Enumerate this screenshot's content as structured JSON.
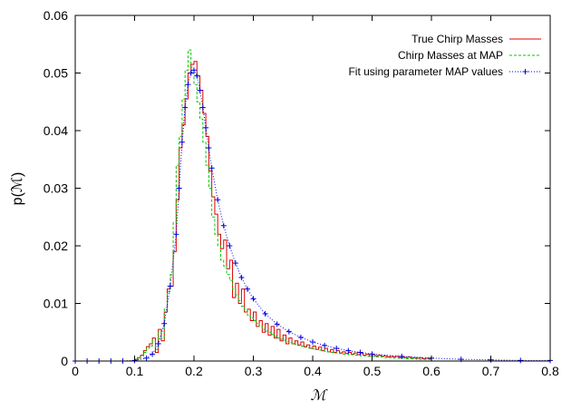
{
  "chart_data": {
    "type": "line",
    "title": "",
    "xlabel": "ℳ",
    "ylabel": "p(ℳ)",
    "xlim": [
      0,
      0.8
    ],
    "ylim": [
      0,
      0.06
    ],
    "x_ticks": [
      "0",
      "0.1",
      "0.2",
      "0.3",
      "0.4",
      "0.5",
      "0.6",
      "0.7",
      "0.8"
    ],
    "y_ticks": [
      "0",
      "0.01",
      "0.02",
      "0.03",
      "0.04",
      "0.05",
      "0.06"
    ],
    "grid": false,
    "legend_position": "top-right",
    "series": [
      {
        "name": "True Chirp Masses",
        "style": "histogram-step",
        "color": "#e00000",
        "bin_width": 0.005,
        "x_start": 0.1,
        "values": [
          0.0003,
          0.0006,
          0.001,
          0.0018,
          0.0025,
          0.003,
          0.004,
          0.0015,
          0.0055,
          0.0035,
          0.0085,
          0.0125,
          0.013,
          0.019,
          0.028,
          0.037,
          0.041,
          0.0455,
          0.05,
          0.0515,
          0.052,
          0.0495,
          0.047,
          0.043,
          0.039,
          0.033,
          0.0285,
          0.0255,
          0.022,
          0.0195,
          0.021,
          0.016,
          0.0175,
          0.011,
          0.0135,
          0.01,
          0.0125,
          0.0085,
          0.009,
          0.007,
          0.0085,
          0.006,
          0.007,
          0.005,
          0.0065,
          0.0045,
          0.006,
          0.004,
          0.0055,
          0.0035,
          0.0045,
          0.003,
          0.004,
          0.003,
          0.0035,
          0.0028,
          0.0033,
          0.0025,
          0.0028,
          0.0022,
          0.0026,
          0.002,
          0.0024,
          0.0018,
          0.0022,
          0.0016,
          0.002,
          0.0015,
          0.0018,
          0.0014,
          0.0016,
          0.0013,
          0.0015,
          0.0012,
          0.0014,
          0.0011,
          0.0013,
          0.001,
          0.0012,
          0.0009,
          0.0011,
          0.0009,
          0.001,
          0.0008,
          0.0009,
          0.0007,
          0.0008,
          0.0007,
          0.0008,
          0.0006,
          0.0007,
          0.0006,
          0.0007,
          0.0005,
          0.0006,
          0.0005,
          0.0006,
          0.0004,
          0.0005,
          0.0004
        ]
      },
      {
        "name": "Chirp Masses at MAP",
        "style": "histogram-step-dashed",
        "color": "#00c800",
        "bin_width": 0.005,
        "x_start": 0.1,
        "values": [
          0.0002,
          0.0005,
          0.0008,
          0.0015,
          0.0022,
          0.0026,
          0.0035,
          0.002,
          0.005,
          0.004,
          0.009,
          0.012,
          0.015,
          0.024,
          0.034,
          0.039,
          0.0455,
          0.0505,
          0.054,
          0.051,
          0.048,
          0.045,
          0.042,
          0.038,
          0.034,
          0.03,
          0.025,
          0.022,
          0.02,
          0.0175,
          0.0165,
          0.015,
          0.014,
          0.0125,
          0.0115,
          0.0105,
          0.0095,
          0.009,
          0.008,
          0.0075,
          0.007,
          0.0065,
          0.006,
          0.0055,
          0.0052,
          0.005,
          0.0046,
          0.0043,
          0.004,
          0.0038,
          0.0036,
          0.0034,
          0.0032,
          0.003,
          0.0029,
          0.0027,
          0.0026,
          0.0024,
          0.0023,
          0.0022,
          0.0021,
          0.002,
          0.0019,
          0.0018,
          0.0017,
          0.0016,
          0.0015,
          0.0014,
          0.0014,
          0.0013,
          0.0012,
          0.0012,
          0.0011,
          0.0011,
          0.001,
          0.001,
          0.0009,
          0.0009,
          0.0008,
          0.0008,
          0.0008,
          0.0007,
          0.0007,
          0.0007,
          0.0006,
          0.0006,
          0.0006,
          0.0005,
          0.0005,
          0.0005,
          0.0005,
          0.0004,
          0.0004,
          0.0004,
          0.0004,
          0.0003,
          0.0003,
          0.0003,
          0.0003,
          0.0003
        ]
      },
      {
        "name": "Fit using parameter MAP values",
        "style": "dotted-line-with-plus-markers",
        "color": "#0000e0",
        "x": [
          0.0,
          0.02,
          0.04,
          0.06,
          0.08,
          0.1,
          0.12,
          0.13,
          0.14,
          0.15,
          0.16,
          0.17,
          0.175,
          0.18,
          0.185,
          0.19,
          0.195,
          0.2,
          0.205,
          0.21,
          0.215,
          0.22,
          0.225,
          0.23,
          0.24,
          0.25,
          0.26,
          0.27,
          0.28,
          0.29,
          0.3,
          0.32,
          0.34,
          0.36,
          0.38,
          0.4,
          0.42,
          0.44,
          0.46,
          0.48,
          0.5,
          0.55,
          0.6,
          0.65,
          0.7,
          0.75,
          0.8
        ],
        "y": [
          0.0,
          0.0,
          0.0,
          0.0,
          0.0,
          0.0001,
          0.0005,
          0.0012,
          0.003,
          0.0065,
          0.013,
          0.022,
          0.03,
          0.038,
          0.044,
          0.048,
          0.05,
          0.0505,
          0.0495,
          0.047,
          0.044,
          0.0405,
          0.037,
          0.0335,
          0.028,
          0.0235,
          0.02,
          0.017,
          0.0145,
          0.0125,
          0.0108,
          0.0082,
          0.0064,
          0.0051,
          0.0041,
          0.0033,
          0.0027,
          0.0022,
          0.0018,
          0.0015,
          0.0012,
          0.0008,
          0.0005,
          0.0003,
          0.0002,
          0.0001,
          0.0001
        ]
      }
    ]
  }
}
